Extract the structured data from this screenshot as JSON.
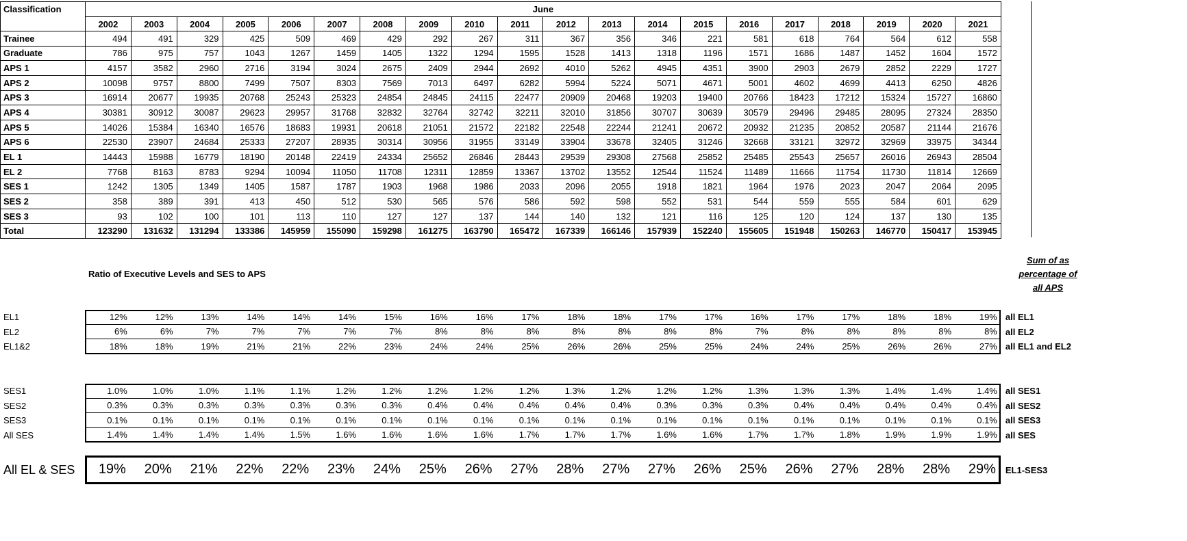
{
  "sheet": {
    "background": "#ffffff",
    "grid_color": "#000000"
  },
  "main_table": {
    "corner_label": "Classification",
    "group_header": "June",
    "years": [
      "2002",
      "2003",
      "2004",
      "2005",
      "2006",
      "2007",
      "2008",
      "2009",
      "2010",
      "2011",
      "2012",
      "2013",
      "2014",
      "2015",
      "2016",
      "2017",
      "2018",
      "2019",
      "2020",
      "2021"
    ],
    "rows": [
      {
        "label": "Trainee",
        "values": [
          494,
          491,
          329,
          425,
          509,
          469,
          429,
          292,
          267,
          311,
          367,
          356,
          346,
          221,
          581,
          618,
          764,
          564,
          612,
          558
        ]
      },
      {
        "label": "Graduate",
        "values": [
          786,
          975,
          757,
          1043,
          1267,
          1459,
          1405,
          1322,
          1294,
          1595,
          1528,
          1413,
          1318,
          1196,
          1571,
          1686,
          1487,
          1452,
          1604,
          1572
        ]
      },
      {
        "label": "APS 1",
        "values": [
          4157,
          3582,
          2960,
          2716,
          3194,
          3024,
          2675,
          2409,
          2944,
          2692,
          4010,
          5262,
          4945,
          4351,
          3900,
          2903,
          2679,
          2852,
          2229,
          1727
        ]
      },
      {
        "label": "APS 2",
        "values": [
          10098,
          9757,
          8800,
          7499,
          7507,
          8303,
          7569,
          7013,
          6497,
          6282,
          5994,
          5224,
          5071,
          4671,
          5001,
          4602,
          4699,
          4413,
          6250,
          4826
        ]
      },
      {
        "label": "APS 3",
        "values": [
          16914,
          20677,
          19935,
          20768,
          25243,
          25323,
          24854,
          24845,
          24115,
          22477,
          20909,
          20468,
          19203,
          19400,
          20766,
          18423,
          17212,
          15324,
          15727,
          16860
        ]
      },
      {
        "label": "APS 4",
        "values": [
          30381,
          30912,
          30087,
          29623,
          29957,
          31768,
          32832,
          32764,
          32742,
          32211,
          32010,
          31856,
          30707,
          30639,
          30579,
          29496,
          29485,
          28095,
          27324,
          28350
        ]
      },
      {
        "label": "APS 5",
        "values": [
          14026,
          15384,
          16340,
          16576,
          18683,
          19931,
          20618,
          21051,
          21572,
          22182,
          22548,
          22244,
          21241,
          20672,
          20932,
          21235,
          20852,
          20587,
          21144,
          21676
        ]
      },
      {
        "label": "APS 6",
        "values": [
          22530,
          23907,
          24684,
          25333,
          27207,
          28935,
          30314,
          30956,
          31955,
          33149,
          33904,
          33678,
          32405,
          31246,
          32668,
          33121,
          32972,
          32969,
          33975,
          34344
        ]
      },
      {
        "label": "EL 1",
        "values": [
          14443,
          15988,
          16779,
          18190,
          20148,
          22419,
          24334,
          25652,
          26846,
          28443,
          29539,
          29308,
          27568,
          25852,
          25485,
          25543,
          25657,
          26016,
          26943,
          28504
        ]
      },
      {
        "label": "EL 2",
        "values": [
          7768,
          8163,
          8783,
          9294,
          10094,
          11050,
          11708,
          12311,
          12859,
          13367,
          13702,
          13552,
          12544,
          11524,
          11489,
          11666,
          11754,
          11730,
          11814,
          12669
        ]
      },
      {
        "label": "SES 1",
        "values": [
          1242,
          1305,
          1349,
          1405,
          1587,
          1787,
          1903,
          1968,
          1986,
          2033,
          2096,
          2055,
          1918,
          1821,
          1964,
          1976,
          2023,
          2047,
          2064,
          2095
        ]
      },
      {
        "label": "SES 2",
        "values": [
          358,
          389,
          391,
          413,
          450,
          512,
          530,
          565,
          576,
          586,
          592,
          598,
          552,
          531,
          544,
          559,
          555,
          584,
          601,
          629
        ]
      },
      {
        "label": "SES 3",
        "values": [
          93,
          102,
          100,
          101,
          113,
          110,
          127,
          127,
          137,
          144,
          140,
          132,
          121,
          116,
          125,
          120,
          124,
          137,
          130,
          135
        ]
      },
      {
        "label": "Total",
        "values": [
          123290,
          131632,
          131294,
          133386,
          145959,
          155090,
          159298,
          161275,
          163790,
          165472,
          167339,
          166146,
          157939,
          152240,
          155605,
          151948,
          150263,
          146770,
          150417,
          153945
        ]
      }
    ]
  },
  "ratio_section": {
    "title": "Ratio of Executive Levels and SES to APS",
    "side_note": [
      "Sum of as",
      "percentage of",
      "all  APS"
    ],
    "el_rows": [
      {
        "label": "EL1",
        "values": [
          "12%",
          "12%",
          "13%",
          "14%",
          "14%",
          "14%",
          "15%",
          "16%",
          "16%",
          "17%",
          "18%",
          "18%",
          "17%",
          "17%",
          "16%",
          "17%",
          "17%",
          "18%",
          "18%",
          "19%"
        ],
        "note": "all EL1"
      },
      {
        "label": "EL2",
        "values": [
          "6%",
          "6%",
          "7%",
          "7%",
          "7%",
          "7%",
          "7%",
          "8%",
          "8%",
          "8%",
          "8%",
          "8%",
          "8%",
          "8%",
          "7%",
          "8%",
          "8%",
          "8%",
          "8%",
          "8%"
        ],
        "note": "all EL2"
      },
      {
        "label": "EL1&2",
        "values": [
          "18%",
          "18%",
          "19%",
          "21%",
          "21%",
          "22%",
          "23%",
          "24%",
          "24%",
          "25%",
          "26%",
          "26%",
          "25%",
          "25%",
          "24%",
          "24%",
          "25%",
          "26%",
          "26%",
          "27%"
        ],
        "note": "all EL1 and EL2"
      }
    ],
    "ses_rows": [
      {
        "label": "SES1",
        "values": [
          "1.0%",
          "1.0%",
          "1.0%",
          "1.1%",
          "1.1%",
          "1.2%",
          "1.2%",
          "1.2%",
          "1.2%",
          "1.2%",
          "1.3%",
          "1.2%",
          "1.2%",
          "1.2%",
          "1.3%",
          "1.3%",
          "1.3%",
          "1.4%",
          "1.4%",
          "1.4%"
        ],
        "note": "all SES1"
      },
      {
        "label": "SES2",
        "values": [
          "0.3%",
          "0.3%",
          "0.3%",
          "0.3%",
          "0.3%",
          "0.3%",
          "0.3%",
          "0.4%",
          "0.4%",
          "0.4%",
          "0.4%",
          "0.4%",
          "0.3%",
          "0.3%",
          "0.3%",
          "0.4%",
          "0.4%",
          "0.4%",
          "0.4%",
          "0.4%"
        ],
        "note": "all SES2"
      },
      {
        "label": "SES3",
        "values": [
          "0.1%",
          "0.1%",
          "0.1%",
          "0.1%",
          "0.1%",
          "0.1%",
          "0.1%",
          "0.1%",
          "0.1%",
          "0.1%",
          "0.1%",
          "0.1%",
          "0.1%",
          "0.1%",
          "0.1%",
          "0.1%",
          "0.1%",
          "0.1%",
          "0.1%",
          "0.1%"
        ],
        "note": "all SES3"
      },
      {
        "label": "All SES",
        "values": [
          "1.4%",
          "1.4%",
          "1.4%",
          "1.4%",
          "1.5%",
          "1.6%",
          "1.6%",
          "1.6%",
          "1.6%",
          "1.7%",
          "1.7%",
          "1.7%",
          "1.6%",
          "1.6%",
          "1.7%",
          "1.7%",
          "1.8%",
          "1.9%",
          "1.9%",
          "1.9%"
        ],
        "note": "all SES"
      }
    ],
    "total_row": {
      "label": "All EL & SES",
      "values": [
        "19%",
        "20%",
        "21%",
        "22%",
        "22%",
        "23%",
        "24%",
        "25%",
        "26%",
        "27%",
        "28%",
        "27%",
        "27%",
        "26%",
        "25%",
        "26%",
        "27%",
        "28%",
        "28%",
        "29%"
      ],
      "note": "EL1-SES3"
    }
  }
}
